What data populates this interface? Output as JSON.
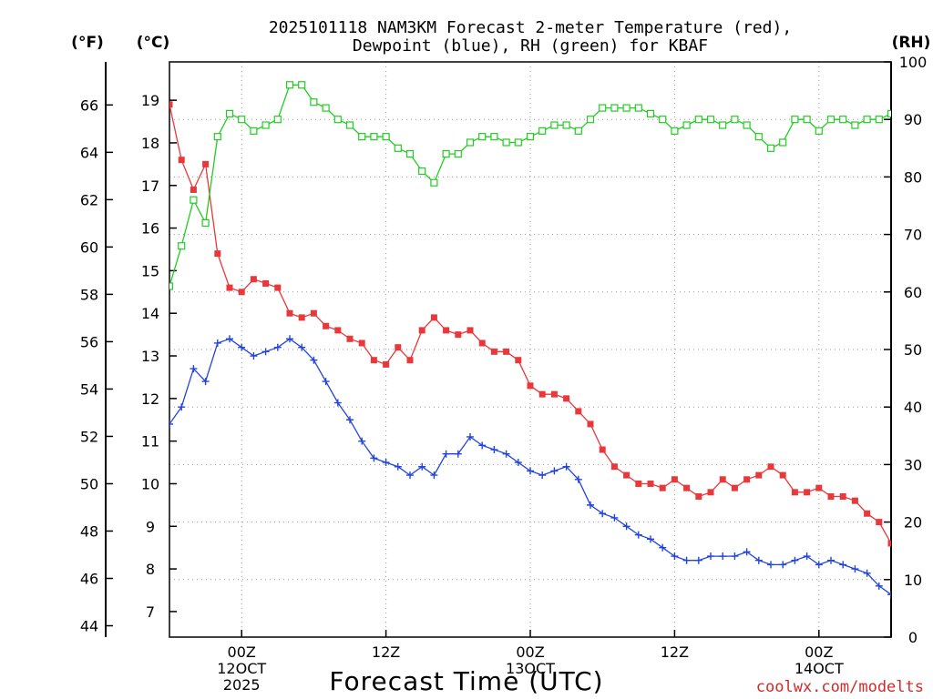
{
  "chart_data": {
    "type": "line",
    "title_lines": [
      "2025101118 NAM3KM Forecast 2-meter Temperature (red),",
      "Dewpoint (blue), RH (green) for KBAF"
    ],
    "xlabel": "Forecast Time (UTC)",
    "credit": "coolwx.com/modelts",
    "units": {
      "fahrenheit": "(°F)",
      "celsius": "(°C)",
      "rh": "(RH)"
    },
    "x_range_hours": [
      0,
      60
    ],
    "x_ticks": [
      {
        "hour": 6,
        "lines": [
          "00Z",
          "12OCT",
          "2025"
        ]
      },
      {
        "hour": 18,
        "lines": [
          "12Z"
        ]
      },
      {
        "hour": 30,
        "lines": [
          "00Z",
          "13OCT"
        ]
      },
      {
        "hour": 42,
        "lines": [
          "12Z"
        ]
      },
      {
        "hour": 54,
        "lines": [
          "00Z",
          "14OCT"
        ]
      }
    ],
    "celsius_axis": {
      "range": [
        6.4,
        19.9
      ],
      "ticks": [
        7,
        8,
        9,
        10,
        11,
        12,
        13,
        14,
        15,
        16,
        17,
        18,
        19
      ]
    },
    "fahrenheit_axis": {
      "range": [
        43.52,
        67.82
      ],
      "ticks": [
        44,
        46,
        48,
        50,
        52,
        54,
        56,
        58,
        60,
        62,
        64,
        66
      ]
    },
    "rh_axis": {
      "range": [
        0,
        100
      ],
      "ticks": [
        0,
        10,
        20,
        30,
        40,
        50,
        60,
        70,
        80,
        90,
        100
      ]
    },
    "series": [
      {
        "name": "2-meter Temperature",
        "unit": "°C",
        "color": "#e8383b",
        "marker": "filled-square",
        "values": [
          18.9,
          17.6,
          16.9,
          17.5,
          15.4,
          14.6,
          14.5,
          14.8,
          14.7,
          14.6,
          14.0,
          13.9,
          14.0,
          13.7,
          13.6,
          13.4,
          13.3,
          12.9,
          12.8,
          13.2,
          12.9,
          13.6,
          13.9,
          13.6,
          13.5,
          13.6,
          13.3,
          13.1,
          13.1,
          12.9,
          12.3,
          12.1,
          12.1,
          12.0,
          11.7,
          11.4,
          10.8,
          10.4,
          10.2,
          10.0,
          10.0,
          9.9,
          10.1,
          9.9,
          9.7,
          9.8,
          10.1,
          9.9,
          10.1,
          10.2,
          10.4,
          10.2,
          9.8,
          9.8,
          9.9,
          9.7,
          9.7,
          9.6,
          9.3,
          9.1,
          8.6
        ]
      },
      {
        "name": "Dewpoint",
        "unit": "°C",
        "color": "#2244dd",
        "marker": "plus",
        "values": [
          11.4,
          11.8,
          12.7,
          12.4,
          13.3,
          13.4,
          13.2,
          13.0,
          13.1,
          13.2,
          13.4,
          13.2,
          12.9,
          12.4,
          11.9,
          11.5,
          11.0,
          10.6,
          10.5,
          10.4,
          10.2,
          10.4,
          10.2,
          10.7,
          10.7,
          11.1,
          10.9,
          10.8,
          10.7,
          10.5,
          10.3,
          10.2,
          10.3,
          10.4,
          10.1,
          9.5,
          9.3,
          9.2,
          9.0,
          8.8,
          8.7,
          8.5,
          8.3,
          8.2,
          8.2,
          8.3,
          8.3,
          8.3,
          8.4,
          8.2,
          8.1,
          8.1,
          8.2,
          8.3,
          8.1,
          8.2,
          8.1,
          8.0,
          7.9,
          7.6,
          7.4
        ]
      },
      {
        "name": "RH",
        "unit": "%",
        "color": "#22cc22",
        "marker": "open-square",
        "values": [
          61,
          68,
          76,
          72,
          87,
          91,
          90,
          88,
          89,
          90,
          96,
          96,
          93,
          92,
          90,
          89,
          87,
          87,
          87,
          85,
          84,
          81,
          79,
          84,
          84,
          86,
          87,
          87,
          86,
          86,
          87,
          88,
          89,
          89,
          88,
          90,
          92,
          92,
          92,
          92,
          91,
          90,
          88,
          89,
          90,
          90,
          89,
          90,
          89,
          87,
          85,
          86,
          90,
          90,
          88,
          90,
          90,
          89,
          90,
          90,
          91
        ]
      }
    ]
  }
}
